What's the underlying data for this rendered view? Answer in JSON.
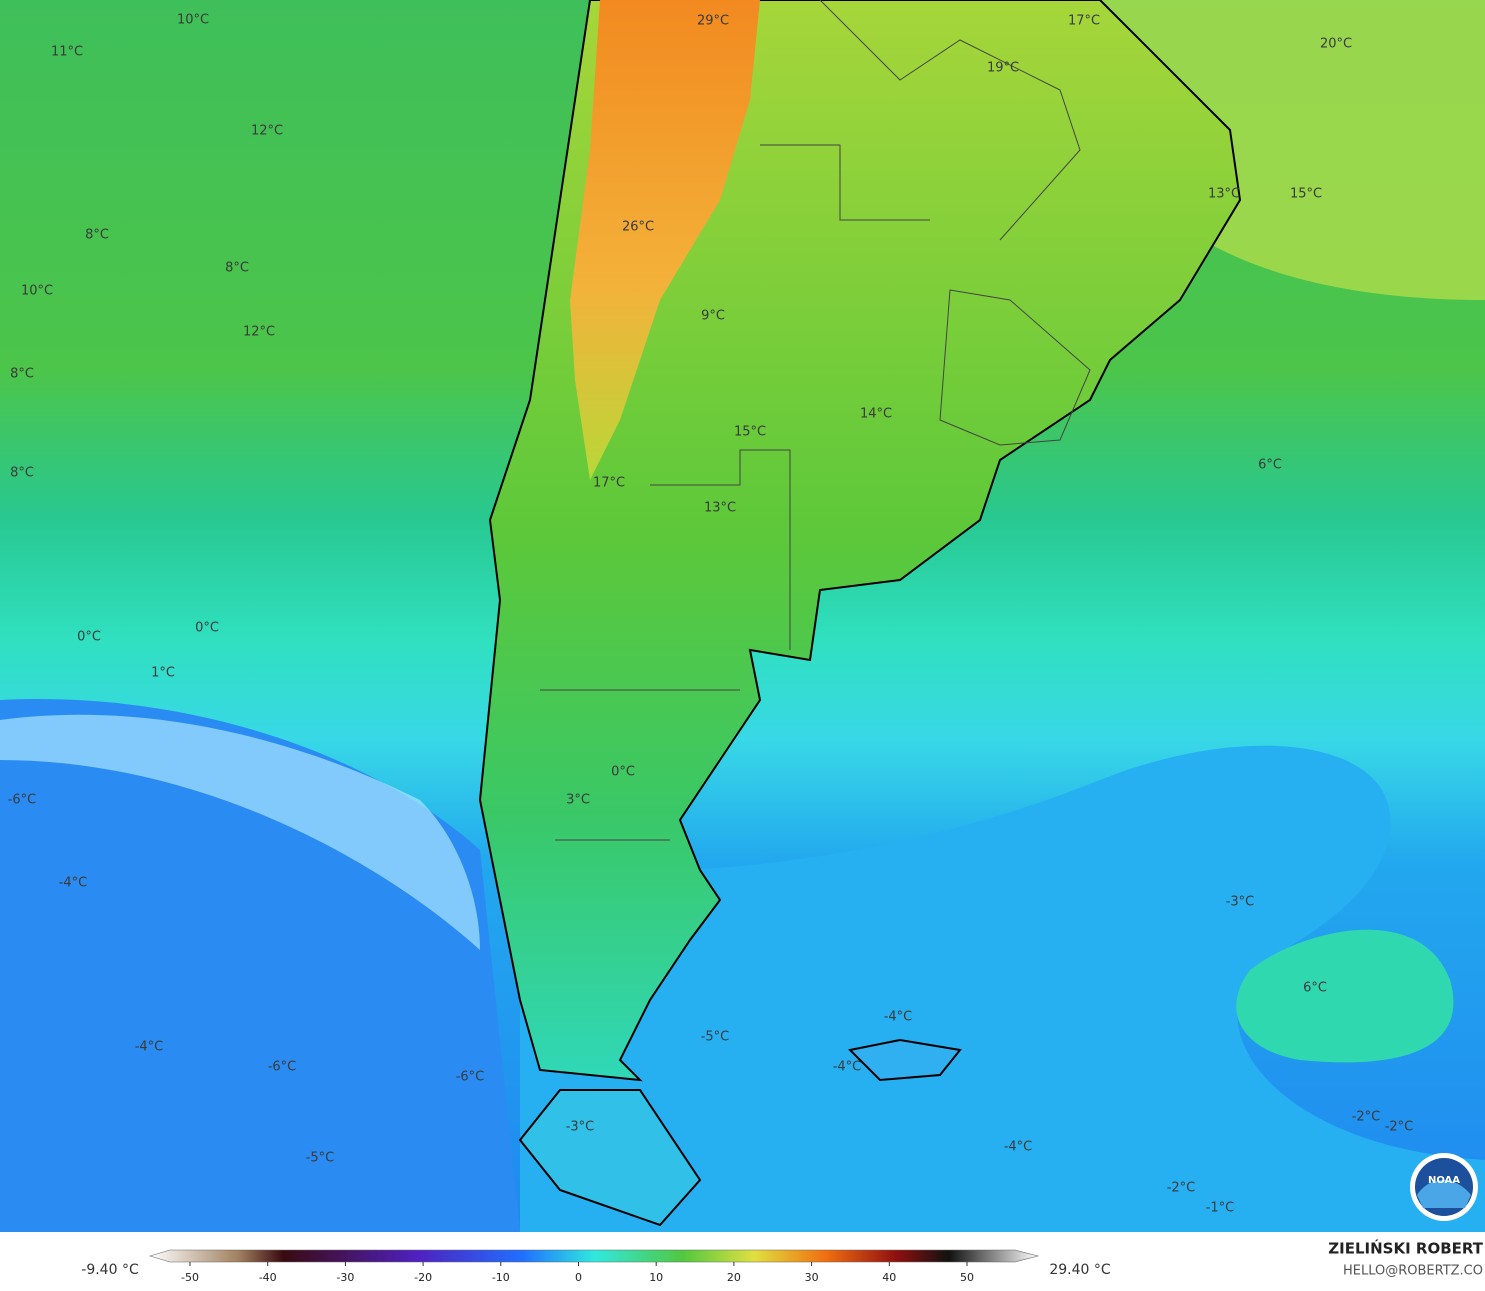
{
  "map": {
    "labels": [
      "10°C",
      "11°C",
      "29°C",
      "17°C",
      "19°C",
      "20°C",
      "12°C",
      "13°C",
      "15°C",
      "8°C",
      "26°C",
      "8°C",
      "10°C",
      "9°C",
      "12°C",
      "8°C",
      "14°C",
      "15°C",
      "6°C",
      "8°C",
      "17°C",
      "13°C",
      "0°C",
      "0°C",
      "1°C",
      "0°C",
      "-6°C",
      "3°C",
      "-4°C",
      "-3°C",
      "6°C",
      "-4°C",
      "-5°C",
      "-4°C",
      "-6°C",
      "-4°C",
      "-6°C",
      "-3°C",
      "-2°C",
      "-2°C",
      "-4°C",
      "-5°C",
      "-2°C",
      "-1°C"
    ]
  },
  "legend": {
    "min_label": "-9.40 °C",
    "max_label": "29.40 °C",
    "ticks": [
      -50,
      -40,
      -30,
      -20,
      -10,
      0,
      10,
      20,
      30,
      40,
      50
    ]
  },
  "footer": {
    "author": "ZIELIŃSKI ROBERT",
    "email": "HELLO@ROBERTZ.CO",
    "logo": "NOAA"
  }
}
